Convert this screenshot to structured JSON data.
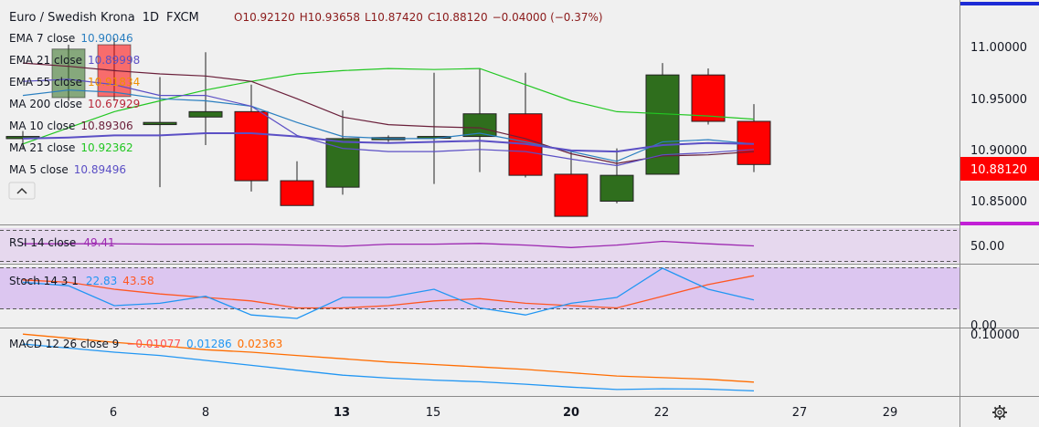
{
  "header": {
    "symbol": "Euro / Swedish Krona",
    "interval": "1D",
    "exchange": "FXCM",
    "ohlc": {
      "o": "O10.92120",
      "h": "H10.93658",
      "l": "L10.87420",
      "c": "C10.88120",
      "chg": "−0.04000 (−0.37%)"
    }
  },
  "legend": [
    {
      "name": "EMA 7 close",
      "value": "10.90046",
      "color": "#2a7fc0"
    },
    {
      "name": "EMA 21 close",
      "value": "10.89998",
      "color": "#5b4fc5"
    },
    {
      "name": "EMA 55 close",
      "value": "10.91834",
      "color": "#f09000"
    },
    {
      "name": "MA 200 close",
      "value": "10.67929",
      "color": "#b8283a"
    },
    {
      "name": "MA 10 close",
      "value": "10.89306",
      "color": "#6a1f3a"
    },
    {
      "name": "MA 21 close",
      "value": "10.92362",
      "color": "#22c722"
    },
    {
      "name": "MA 5 close",
      "value": "10.89496",
      "color": "#5b4fc5"
    }
  ],
  "collapse_icon": "chevron-up-icon",
  "settings_icon": "gear-icon",
  "price_tag": {
    "value": "10.88120",
    "color": "#ff0000"
  },
  "price_axis_labels": [
    "11.00000",
    "10.95000",
    "10.90000",
    "10.85000"
  ],
  "rsi": {
    "label": "RSI 14 close",
    "value": "49.41",
    "color": "#9c27b0",
    "axis_label": "50.00"
  },
  "stoch": {
    "label": "Stoch 14 3 1",
    "k": "22.83",
    "d": "43.58",
    "k_color": "#2196f3",
    "d_color": "#ff5722",
    "axis_label": "0.00"
  },
  "macd": {
    "label": "MACD 12 26 close 9",
    "hist": "−0.01077",
    "macd": "0.01286",
    "signal": "0.02363",
    "macd_color": "#2196f3",
    "signal_color": "#ff6d00",
    "axis_label": "0.10000"
  },
  "x_axis_labels": [
    "6",
    "8",
    "13",
    "15",
    "20",
    "22",
    "27",
    "29"
  ],
  "chart_data": {
    "type": "candlestick",
    "symbol": "Euro / Swedish Krona",
    "interval": "1D",
    "dates": [
      "3",
      "4",
      "5",
      "6",
      "7",
      "8",
      "9",
      "10",
      "13",
      "14",
      "15",
      "16",
      "17",
      "20",
      "21",
      "22",
      "23"
    ],
    "x_ticks": [
      "6",
      "8",
      "13",
      "15",
      "20",
      "22",
      "27",
      "29"
    ],
    "ylim": [
      10.828,
      11.025
    ],
    "y_ticks": [
      11.0,
      10.95,
      10.9,
      10.85
    ],
    "candles": [
      {
        "o": 10.905,
        "h": 10.912,
        "l": 10.896,
        "c": 10.907
      },
      {
        "o": 10.943,
        "h": 10.992,
        "l": 10.94,
        "c": 10.988
      },
      {
        "o": 10.992,
        "h": 10.998,
        "l": 10.94,
        "c": 10.944
      },
      {
        "o": 10.918,
        "h": 10.962,
        "l": 10.86,
        "c": 10.92
      },
      {
        "o": 10.925,
        "h": 10.985,
        "l": 10.899,
        "c": 10.93
      },
      {
        "o": 10.93,
        "h": 10.955,
        "l": 10.856,
        "c": 10.866
      },
      {
        "o": 10.866,
        "h": 10.884,
        "l": 10.843,
        "c": 10.843
      },
      {
        "o": 10.86,
        "h": 10.931,
        "l": 10.853,
        "c": 10.905
      },
      {
        "o": 10.904,
        "h": 10.908,
        "l": 10.902,
        "c": 10.906
      },
      {
        "o": 10.907,
        "h": 10.966,
        "l": 10.863,
        "c": 10.907
      },
      {
        "o": 10.907,
        "h": 10.97,
        "l": 10.874,
        "c": 10.928
      },
      {
        "o": 10.928,
        "h": 10.966,
        "l": 10.869,
        "c": 10.871
      },
      {
        "o": 10.872,
        "h": 10.893,
        "l": 10.833,
        "c": 10.833
      },
      {
        "o": 10.847,
        "h": 10.896,
        "l": 10.845,
        "c": 10.871
      },
      {
        "o": 10.872,
        "h": 10.975,
        "l": 10.872,
        "c": 10.964
      },
      {
        "o": 10.964,
        "h": 10.97,
        "l": 10.918,
        "c": 10.921
      },
      {
        "o": 10.921,
        "h": 10.937,
        "l": 10.874,
        "c": 10.881
      }
    ],
    "last_price": 10.8812,
    "series": [
      {
        "name": "MA 21 close",
        "color": "#22c722",
        "values": [
          10.9,
          10.915,
          10.93,
          10.94,
          10.95,
          10.958,
          10.965,
          10.968,
          10.97,
          10.969,
          10.97,
          10.955,
          10.94,
          10.93,
          10.928,
          10.926,
          10.923
        ]
      },
      {
        "name": "MA 10 close",
        "color": "#6a1f3a",
        "values": [
          10.975,
          10.972,
          10.968,
          10.965,
          10.963,
          10.958,
          10.942,
          10.925,
          10.918,
          10.916,
          10.915,
          10.905,
          10.891,
          10.882,
          10.889,
          10.89,
          10.893
        ]
      },
      {
        "name": "EMA 7 close",
        "color": "#2a7fc0",
        "values": [
          10.945,
          10.95,
          10.948,
          10.942,
          10.94,
          10.935,
          10.92,
          10.907,
          10.905,
          10.905,
          10.91,
          10.902,
          10.893,
          10.884,
          10.902,
          10.904,
          10.9
        ]
      },
      {
        "name": "EMA 21 close",
        "color": "#5b4fc5",
        "values": [
          10.905,
          10.906,
          10.908,
          10.908,
          10.91,
          10.91,
          10.907,
          10.902,
          10.901,
          10.902,
          10.903,
          10.9,
          10.894,
          10.893,
          10.899,
          10.901,
          10.9
        ]
      },
      {
        "name": "MA 5 close",
        "color": "#5b4fc5",
        "values": [
          10.958,
          10.96,
          10.955,
          10.945,
          10.945,
          10.935,
          10.908,
          10.896,
          10.893,
          10.893,
          10.895,
          10.893,
          10.886,
          10.88,
          10.89,
          10.892,
          10.895
        ]
      }
    ],
    "rsi": {
      "name": "RSI 14 close",
      "ylim": [
        0,
        100
      ],
      "values": [
        52,
        52,
        52,
        51.5,
        51.5,
        51.5,
        50.5,
        49,
        51.5,
        51.5,
        52.5,
        50.5,
        47.5,
        50.5,
        55,
        52,
        49.4
      ]
    },
    "stoch": {
      "ylim": [
        0,
        100
      ],
      "k": [
        38,
        35,
        18,
        20,
        26,
        10,
        7,
        25,
        25,
        32,
        16,
        10,
        20,
        25,
        50,
        32,
        22.8
      ],
      "d": [
        40,
        38,
        32,
        28,
        25,
        22,
        16,
        16,
        18,
        22,
        24,
        20,
        18,
        16,
        26,
        36,
        43.6
      ]
    },
    "macd": {
      "macd": [
        0.07,
        0.065,
        0.06,
        0.056,
        0.05,
        0.044,
        0.038,
        0.032,
        0.0285,
        0.026,
        0.024,
        0.021,
        0.0175,
        0.0145,
        0.0155,
        0.015,
        0.0129
      ],
      "signal": [
        0.082,
        0.077,
        0.072,
        0.068,
        0.063,
        0.06,
        0.056,
        0.052,
        0.048,
        0.045,
        0.042,
        0.039,
        0.035,
        0.031,
        0.029,
        0.027,
        0.0236
      ],
      "ylim": [
        0.0,
        0.1
      ]
    }
  }
}
